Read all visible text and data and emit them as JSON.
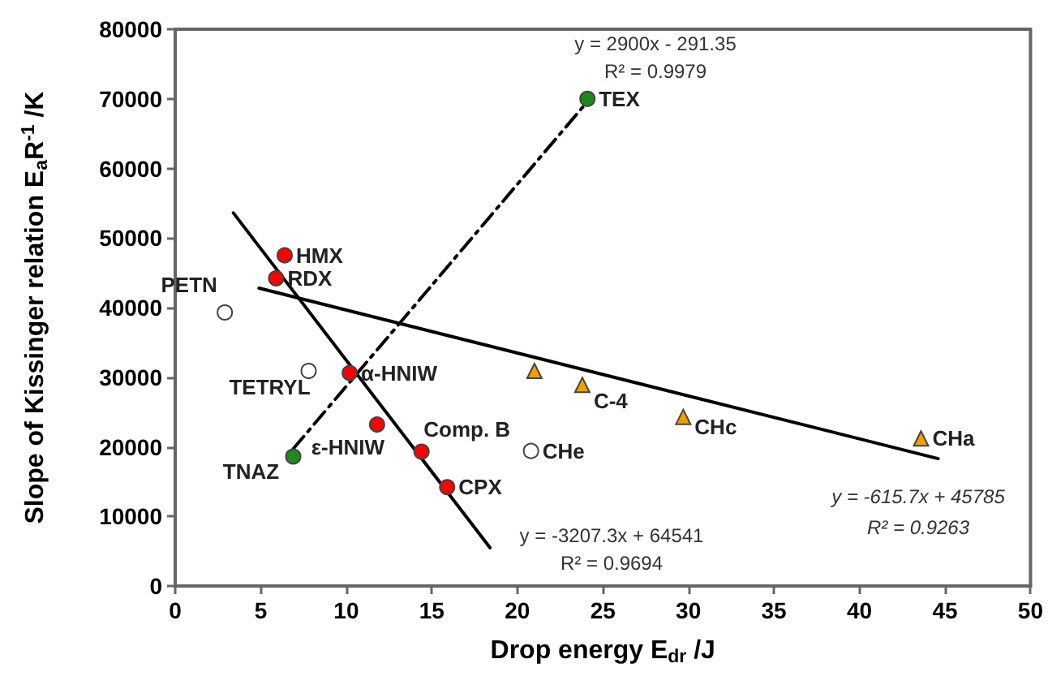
{
  "chart_data": {
    "type": "scatter",
    "xlabel": "Drop energy E$_{dr}$ /J",
    "ylabel": "Slope of Kissinger relation E$_{a}$R$^{-1}$ /K",
    "xlim": [
      0,
      50
    ],
    "xticks": [
      0,
      5,
      10,
      15,
      20,
      25,
      30,
      35,
      40,
      45,
      50
    ],
    "ylim": [
      0,
      80000
    ],
    "yticks": [
      0,
      10000,
      20000,
      30000,
      40000,
      50000,
      60000,
      70000,
      80000
    ],
    "grid": false,
    "series": [
      {
        "type": "scatter",
        "marker": "circle",
        "color": "#ff0000",
        "x": [
          6.4,
          5.9,
          10.2,
          11.8,
          14.4,
          15.9
        ],
        "values": [
          47500,
          44200,
          30600,
          23200,
          19300,
          14200
        ]
      },
      {
        "type": "scatter",
        "marker": "circle",
        "color": "#ffffff",
        "x": [
          2.9,
          7.8,
          20.8
        ],
        "values": [
          39300,
          30900,
          19400
        ]
      },
      {
        "type": "scatter",
        "marker": "circle",
        "color": "#1e8a1e",
        "x": [
          6.9,
          24.1
        ],
        "values": [
          18600,
          70000
        ]
      },
      {
        "type": "scatter",
        "marker": "triangle",
        "color": "#f0a000",
        "x": [
          21.0,
          23.8,
          29.7,
          43.6
        ],
        "values": [
          30900,
          28900,
          24300,
          21200
        ]
      },
      {
        "type": "line",
        "marker": "none",
        "line_style": "dashed",
        "color": "#000000",
        "x": [
          6.9,
          24.2
        ],
        "values": [
          19700,
          69900
        ]
      },
      {
        "type": "line",
        "marker": "none",
        "line_style": "solid",
        "color": "#000000",
        "x": [
          3.4,
          18.4
        ],
        "values": [
          53600,
          5500
        ]
      },
      {
        "type": "line",
        "marker": "none",
        "line_style": "solid",
        "color": "#000000",
        "x": [
          4.9,
          44.6
        ],
        "values": [
          42800,
          18300
        ]
      }
    ],
    "annotations": [
      "y = 2900x - 291.35",
      "R² = 0.9979",
      "y = -3207.3x + 64541",
      "R² = 0.9694",
      "y = -615.7x + 45785",
      "R² = 0.9263",
      {
        "text": "HMX",
        "x": 6.4,
        "y": 47500
      },
      {
        "text": "RDX",
        "x": 5.9,
        "y": 44200
      },
      {
        "text": "PETN",
        "x": 2.9,
        "y": 39300
      },
      {
        "text": "TEX",
        "x": 24.1,
        "y": 70000
      },
      {
        "text": "TETRYL",
        "x": 7.8,
        "y": 30900
      },
      {
        "text": "α-HNIW",
        "x": 10.2,
        "y": 30600
      },
      {
        "text": "ε-HNIW",
        "x": 11.8,
        "y": 23200
      },
      {
        "text": "TNAZ",
        "x": 6.9,
        "y": 18600
      },
      {
        "text": "Comp. B",
        "x": 14.4,
        "y": 19300
      },
      {
        "text": "CPX",
        "x": 15.9,
        "y": 14200
      },
      {
        "text": "CHe",
        "x": 20.8,
        "y": 19400
      },
      {
        "text": "C-4",
        "x": 23.8,
        "y": 28900
      },
      {
        "text": "CHc",
        "x": 29.7,
        "y": 24300
      },
      {
        "text": "CHa",
        "x": 43.6,
        "y": 21200
      }
    ]
  }
}
